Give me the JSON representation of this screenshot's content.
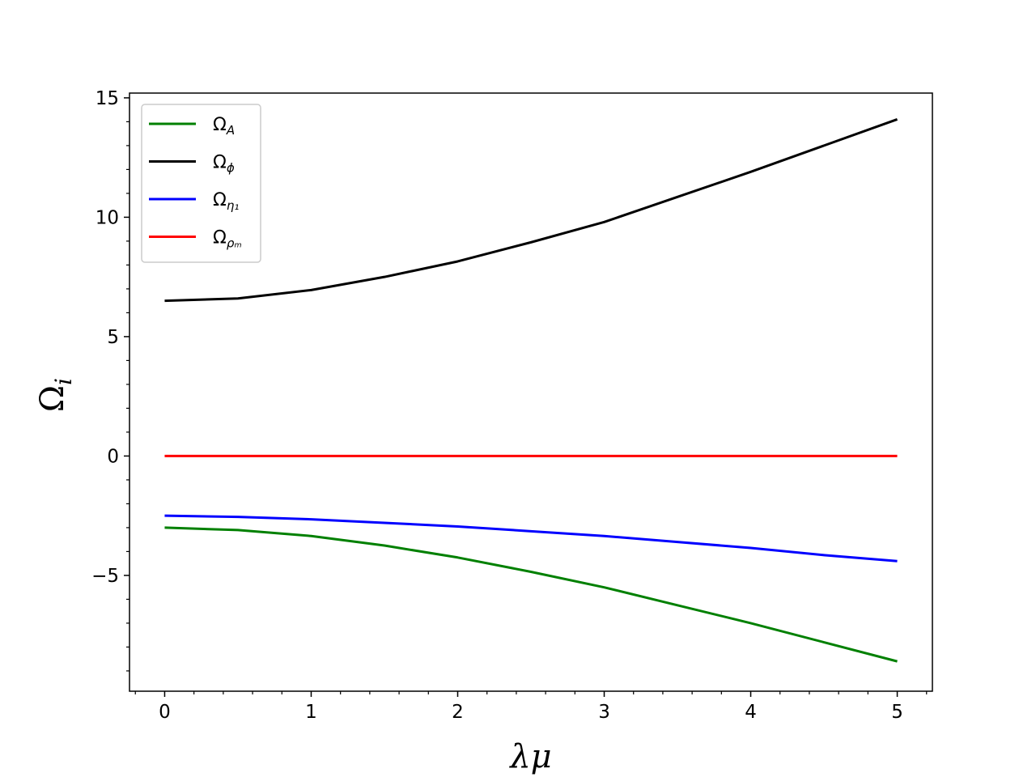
{
  "chart_data": {
    "type": "line",
    "title": "",
    "xlabel": "λμ",
    "ylabel": "Ω",
    "ylabel_sub": "i",
    "xlim": [
      -0.24,
      5.24
    ],
    "ylim": [
      -9.85,
      15.2
    ],
    "xticks": [
      0,
      1,
      2,
      3,
      4,
      5
    ],
    "xtick_labels": [
      "0",
      "1",
      "2",
      "3",
      "4",
      "5"
    ],
    "yticks": [
      -5,
      0,
      5,
      10,
      15
    ],
    "ytick_labels": [
      "−5",
      "0",
      "5",
      "10",
      "15"
    ],
    "grid": false,
    "legend_position": "upper-left",
    "x": [
      0,
      0.5,
      1,
      1.5,
      2,
      2.5,
      3,
      3.5,
      4,
      4.5,
      5
    ],
    "series": [
      {
        "name": "Ω",
        "sub": "A",
        "color": "#008000",
        "values": [
          -3.0,
          -3.1,
          -3.35,
          -3.75,
          -4.25,
          -4.85,
          -5.5,
          -6.25,
          -7.0,
          -7.8,
          -8.6
        ]
      },
      {
        "name": "Ω",
        "sub": "ϕ",
        "color": "#000000",
        "values": [
          6.5,
          6.6,
          6.95,
          7.5,
          8.15,
          8.95,
          9.8,
          10.85,
          11.9,
          13.0,
          14.1
        ]
      },
      {
        "name": "Ω",
        "sub": "η₁",
        "color": "#0000ff",
        "values": [
          -2.5,
          -2.55,
          -2.65,
          -2.8,
          -2.95,
          -3.15,
          -3.35,
          -3.6,
          -3.85,
          -4.15,
          -4.4
        ]
      },
      {
        "name": "Ω",
        "sub": "ρₘ",
        "color": "#ff0000",
        "values": [
          0,
          0,
          0,
          0,
          0,
          0,
          0,
          0,
          0,
          0,
          0
        ]
      }
    ]
  }
}
